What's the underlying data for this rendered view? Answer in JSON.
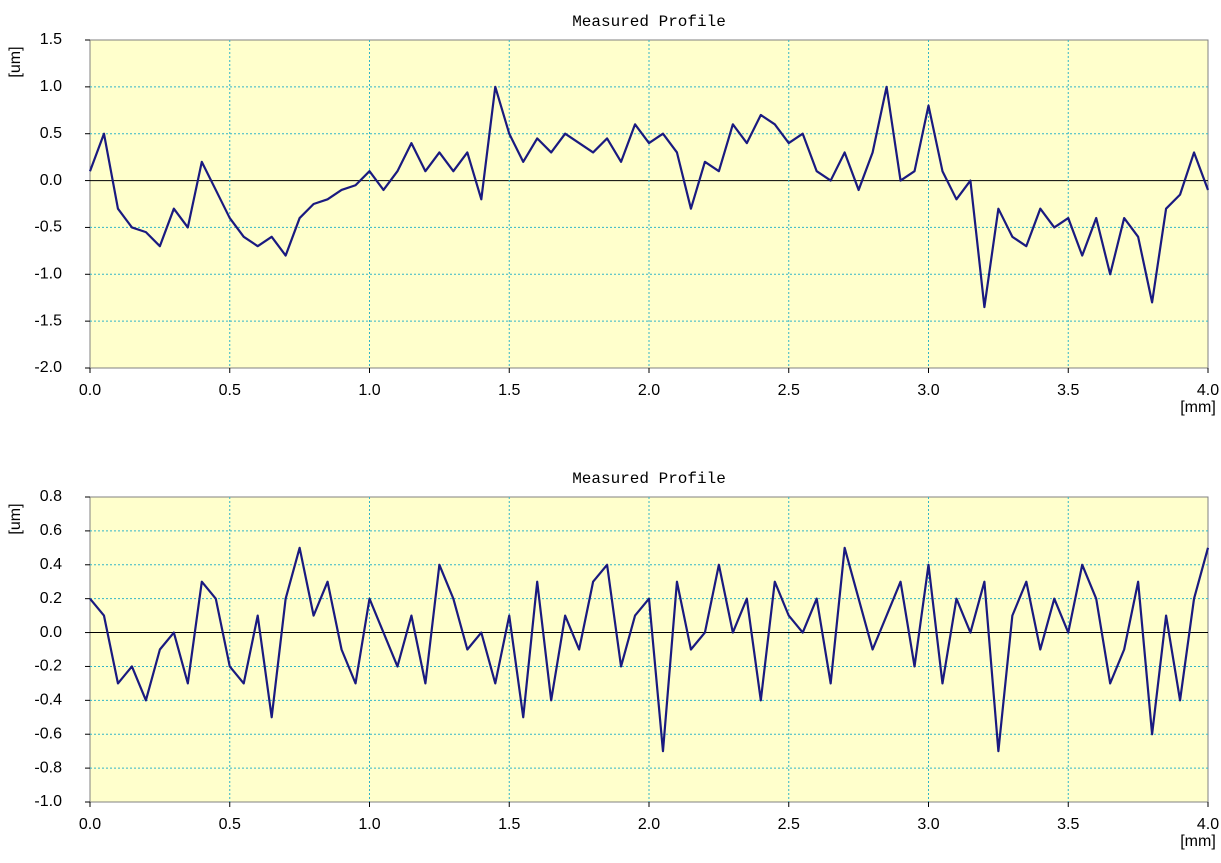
{
  "chart_data": [
    {
      "type": "line",
      "title": "Measured Profile",
      "x_label": "[mm]",
      "y_label": "[um]",
      "x": [
        0,
        0.05,
        0.1,
        0.15,
        0.2,
        0.25,
        0.3,
        0.35,
        0.4,
        0.45,
        0.5,
        0.55,
        0.6,
        0.65,
        0.7,
        0.75,
        0.8,
        0.85,
        0.9,
        0.95,
        1,
        1.05,
        1.1,
        1.15,
        1.2,
        1.25,
        1.3,
        1.35,
        1.4,
        1.45,
        1.5,
        1.55,
        1.6,
        1.65,
        1.7,
        1.75,
        1.8,
        1.85,
        1.9,
        1.95,
        2,
        2.05,
        2.1,
        2.15,
        2.2,
        2.25,
        2.3,
        2.35,
        2.4,
        2.45,
        2.5,
        2.55,
        2.6,
        2.65,
        2.7,
        2.75,
        2.8,
        2.85,
        2.9,
        2.95,
        3,
        3.05,
        3.1,
        3.15,
        3.2,
        3.25,
        3.3,
        3.35,
        3.4,
        3.45,
        3.5,
        3.55,
        3.6,
        3.65,
        3.7,
        3.75,
        3.8,
        3.85,
        3.9,
        3.95,
        4
      ],
      "values": [
        0.1,
        0.5,
        -0.3,
        -0.5,
        -0.55,
        -0.7,
        -0.3,
        -0.5,
        0.2,
        -0.1,
        -0.4,
        -0.6,
        -0.7,
        -0.6,
        -0.8,
        -0.4,
        -0.25,
        -0.2,
        -0.1,
        -0.05,
        0.1,
        -0.1,
        0.1,
        0.4,
        0.1,
        0.3,
        0.1,
        0.3,
        -0.2,
        1.0,
        0.5,
        0.2,
        0.45,
        0.3,
        0.5,
        0.4,
        0.3,
        0.45,
        0.2,
        0.6,
        0.4,
        0.5,
        0.3,
        -0.3,
        0.2,
        0.1,
        0.6,
        0.4,
        0.7,
        0.6,
        0.4,
        0.5,
        0.1,
        0.0,
        0.3,
        -0.1,
        0.3,
        1.0,
        0.0,
        0.1,
        0.8,
        0.1,
        -0.2,
        0.0,
        -1.35,
        -0.3,
        -0.6,
        -0.7,
        -0.3,
        -0.5,
        -0.4,
        -0.8,
        -0.4,
        -1.0,
        -0.4,
        -0.6,
        -1.3,
        -0.3,
        -0.15,
        0.3,
        -0.1
      ],
      "color": "#1a1a80",
      "xlim": [
        0,
        4
      ],
      "ylim": [
        -2,
        1.5
      ],
      "xticks": [
        {
          "value": 0,
          "label": "0.0"
        },
        0.5,
        {
          "value": 1,
          "label": "1.0"
        },
        1.5,
        {
          "value": 2,
          "label": "2.0"
        },
        2.5,
        {
          "value": 3,
          "label": "3.0"
        },
        3.5,
        {
          "value": 4,
          "label": "4.0"
        }
      ],
      "yticks": [
        {
          "value": -2,
          "label": "-2.0"
        },
        -1.5,
        {
          "value": -1,
          "label": "-1.0"
        },
        -0.5,
        {
          "value": 0,
          "label": "0.0"
        },
        0.5,
        {
          "value": 1,
          "label": "1.0"
        },
        1.5
      ],
      "grid": true
    },
    {
      "type": "line",
      "title": "Measured Profile",
      "x_label": "[mm]",
      "y_label": "[um]",
      "x": [
        0,
        0.05,
        0.1,
        0.15,
        0.2,
        0.25,
        0.3,
        0.35,
        0.4,
        0.45,
        0.5,
        0.55,
        0.6,
        0.65,
        0.7,
        0.75,
        0.8,
        0.85,
        0.9,
        0.95,
        1,
        1.05,
        1.1,
        1.15,
        1.2,
        1.25,
        1.3,
        1.35,
        1.4,
        1.45,
        1.5,
        1.55,
        1.6,
        1.65,
        1.7,
        1.75,
        1.8,
        1.85,
        1.9,
        1.95,
        2,
        2.05,
        2.1,
        2.15,
        2.2,
        2.25,
        2.3,
        2.35,
        2.4,
        2.45,
        2.5,
        2.55,
        2.6,
        2.65,
        2.7,
        2.75,
        2.8,
        2.85,
        2.9,
        2.95,
        3,
        3.05,
        3.1,
        3.15,
        3.2,
        3.25,
        3.3,
        3.35,
        3.4,
        3.45,
        3.5,
        3.55,
        3.6,
        3.65,
        3.7,
        3.75,
        3.8,
        3.85,
        3.9,
        3.95,
        4
      ],
      "values": [
        0.2,
        0.1,
        -0.3,
        -0.2,
        -0.4,
        -0.1,
        0.0,
        -0.3,
        0.3,
        0.2,
        -0.2,
        -0.3,
        0.1,
        -0.5,
        0.2,
        0.5,
        0.1,
        0.3,
        -0.1,
        -0.3,
        0.2,
        0.0,
        -0.2,
        0.1,
        -0.3,
        0.4,
        0.2,
        -0.1,
        0.0,
        -0.3,
        0.1,
        -0.5,
        0.3,
        -0.4,
        0.1,
        -0.1,
        0.3,
        0.4,
        -0.2,
        0.1,
        0.2,
        -0.7,
        0.3,
        -0.1,
        0.0,
        0.4,
        0.0,
        0.2,
        -0.4,
        0.3,
        0.1,
        0.0,
        0.2,
        -0.3,
        0.5,
        0.2,
        -0.1,
        0.1,
        0.3,
        -0.2,
        0.4,
        -0.3,
        0.2,
        0.0,
        0.3,
        -0.7,
        0.1,
        0.3,
        -0.1,
        0.2,
        0.0,
        0.4,
        0.2,
        -0.3,
        -0.1,
        0.3,
        -0.6,
        0.1,
        -0.4,
        0.2,
        0.5
      ],
      "color": "#1a1a80",
      "xlim": [
        0,
        4
      ],
      "ylim": [
        -1,
        0.8
      ],
      "xticks": [
        {
          "value": 0,
          "label": "0.0"
        },
        0.5,
        {
          "value": 1,
          "label": "1.0"
        },
        1.5,
        {
          "value": 2,
          "label": "2.0"
        },
        2.5,
        {
          "value": 3,
          "label": "3.0"
        },
        3.5,
        {
          "value": 4,
          "label": "4.0"
        }
      ],
      "yticks": [
        {
          "value": -1,
          "label": "-1.0"
        },
        -0.8,
        -0.6,
        -0.4,
        -0.2,
        {
          "value": 0,
          "label": "0.0"
        },
        0.2,
        0.4,
        0.6,
        0.8
      ],
      "grid": true
    }
  ]
}
